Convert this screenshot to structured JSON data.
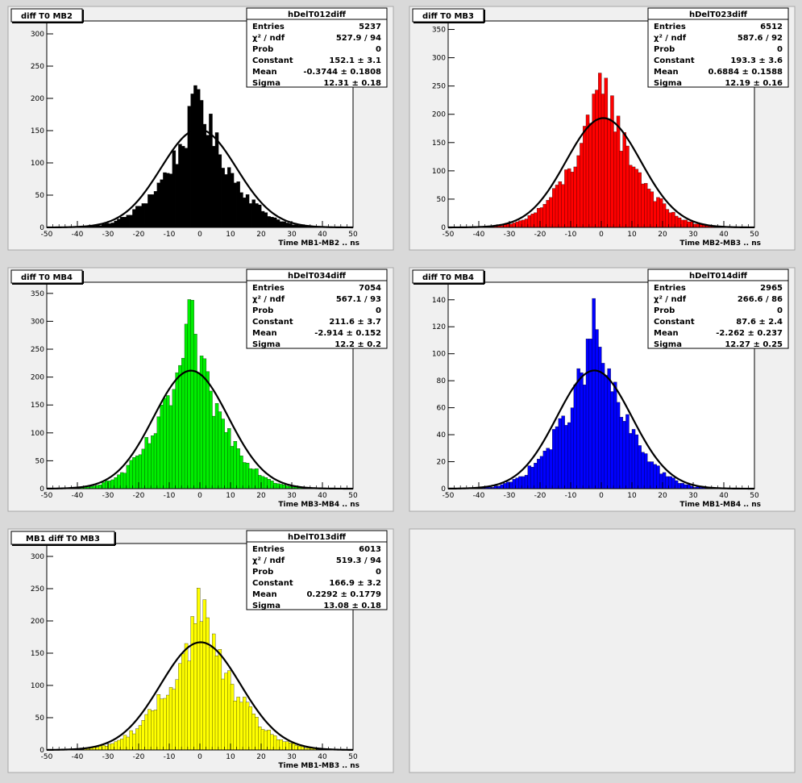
{
  "chart_data": [
    {
      "type": "bar",
      "title": "diff T0 MB2",
      "xlabel": "Time MB1-MB2  ..  ns",
      "xlim": [
        -50,
        50
      ],
      "ylim": [
        0,
        320
      ],
      "yticks": [
        0,
        50,
        100,
        150,
        200,
        250,
        300
      ],
      "xticks": [
        -50,
        -40,
        -30,
        -20,
        -10,
        0,
        10,
        20,
        30,
        40,
        50
      ],
      "color": "#000000",
      "fit": {
        "constant": 152.1,
        "mean": -0.3744,
        "sigma": 12.31
      },
      "stats": {
        "name": "hDelT012diff",
        "rows": [
          {
            "label": "Entries",
            "value": "5237"
          },
          {
            "label": "χ² / ndf",
            "value": "527.9 / 94"
          },
          {
            "label": "Prob",
            "value": "0"
          },
          {
            "label": "Constant",
            "value": "152.1 ± 3.1"
          },
          {
            "label": "Mean",
            "value": "-0.3744 ± 0.1808"
          },
          {
            "label": "Sigma",
            "value": "12.31 ± 0.18"
          }
        ]
      }
    },
    {
      "type": "bar",
      "title": "diff T0 MB3",
      "xlabel": "Time MB2-MB3  ..  ns",
      "xlim": [
        -50,
        50
      ],
      "ylim": [
        0,
        365
      ],
      "yticks": [
        0,
        50,
        100,
        150,
        200,
        250,
        300,
        350
      ],
      "xticks": [
        -50,
        -40,
        -30,
        -20,
        -10,
        0,
        10,
        20,
        30,
        40,
        50
      ],
      "color": "#ff0000",
      "fit": {
        "constant": 193.3,
        "mean": 0.6884,
        "sigma": 12.19
      },
      "stats": {
        "name": "hDelT023diff",
        "rows": [
          {
            "label": "Entries",
            "value": "6512"
          },
          {
            "label": "χ² / ndf",
            "value": "587.6 / 92"
          },
          {
            "label": "Prob",
            "value": "0"
          },
          {
            "label": "Constant",
            "value": "193.3 ± 3.6"
          },
          {
            "label": "Mean",
            "value": "0.6884 ± 0.1588"
          },
          {
            "label": "Sigma",
            "value": "12.19 ± 0.16"
          }
        ]
      }
    },
    {
      "type": "bar",
      "title": "diff T0 MB4",
      "xlabel": "Time MB3-MB4  ..  ns",
      "xlim": [
        -50,
        50
      ],
      "ylim": [
        0,
        370
      ],
      "yticks": [
        0,
        50,
        100,
        150,
        200,
        250,
        300,
        350
      ],
      "xticks": [
        -50,
        -40,
        -30,
        -20,
        -10,
        0,
        10,
        20,
        30,
        40,
        50
      ],
      "color": "#00ee00",
      "fit": {
        "constant": 211.6,
        "mean": -2.914,
        "sigma": 12.2
      },
      "stats": {
        "name": "hDelT034diff",
        "rows": [
          {
            "label": "Entries",
            "value": "7054"
          },
          {
            "label": "χ² / ndf",
            "value": "567.1 / 93"
          },
          {
            "label": "Prob",
            "value": "0"
          },
          {
            "label": "Constant",
            "value": "211.6 ± 3.7"
          },
          {
            "label": "Mean",
            "value": "-2.914 ± 0.152"
          },
          {
            "label": "Sigma",
            "value": "12.2 ± 0.2"
          }
        ]
      }
    },
    {
      "type": "bar",
      "title": "diff T0 MB4",
      "xlabel": "Time MB1-MB4  ..  ns",
      "xlim": [
        -50,
        50
      ],
      "ylim": [
        0,
        153
      ],
      "yticks": [
        0,
        20,
        40,
        60,
        80,
        100,
        120,
        140
      ],
      "xticks": [
        -50,
        -40,
        -30,
        -20,
        -10,
        0,
        10,
        20,
        30,
        40,
        50
      ],
      "color": "#0000ff",
      "fit": {
        "constant": 87.6,
        "mean": -2.262,
        "sigma": 12.27
      },
      "stats": {
        "name": "hDelT014diff",
        "rows": [
          {
            "label": "Entries",
            "value": "2965"
          },
          {
            "label": "χ² / ndf",
            "value": "266.6 / 86"
          },
          {
            "label": "Prob",
            "value": "0"
          },
          {
            "label": "Constant",
            "value": "87.6 ± 2.4"
          },
          {
            "label": "Mean",
            "value": "-2.262 ± 0.237"
          },
          {
            "label": "Sigma",
            "value": "12.27 ± 0.25"
          }
        ]
      }
    },
    {
      "type": "bar",
      "title": "MB1 diff T0 MB3",
      "xlabel": "Time MB1-MB3  ..  ns",
      "xlim": [
        -50,
        50
      ],
      "ylim": [
        0,
        320
      ],
      "yticks": [
        0,
        50,
        100,
        150,
        200,
        250,
        300
      ],
      "xticks": [
        -50,
        -40,
        -30,
        -20,
        -10,
        0,
        10,
        20,
        30,
        40,
        50
      ],
      "color": "#ffff00",
      "fit": {
        "constant": 166.9,
        "mean": 0.2292,
        "sigma": 13.08
      },
      "stats": {
        "name": "hDelT013diff",
        "rows": [
          {
            "label": "Entries",
            "value": "6013"
          },
          {
            "label": "χ² / ndf",
            "value": "519.3 / 94"
          },
          {
            "label": "Prob",
            "value": "0"
          },
          {
            "label": "Constant",
            "value": "166.9 ± 3.2"
          },
          {
            "label": "Mean",
            "value": "0.2292 ± 0.1779"
          },
          {
            "label": "Sigma",
            "value": "13.08 ± 0.18"
          }
        ]
      }
    }
  ]
}
